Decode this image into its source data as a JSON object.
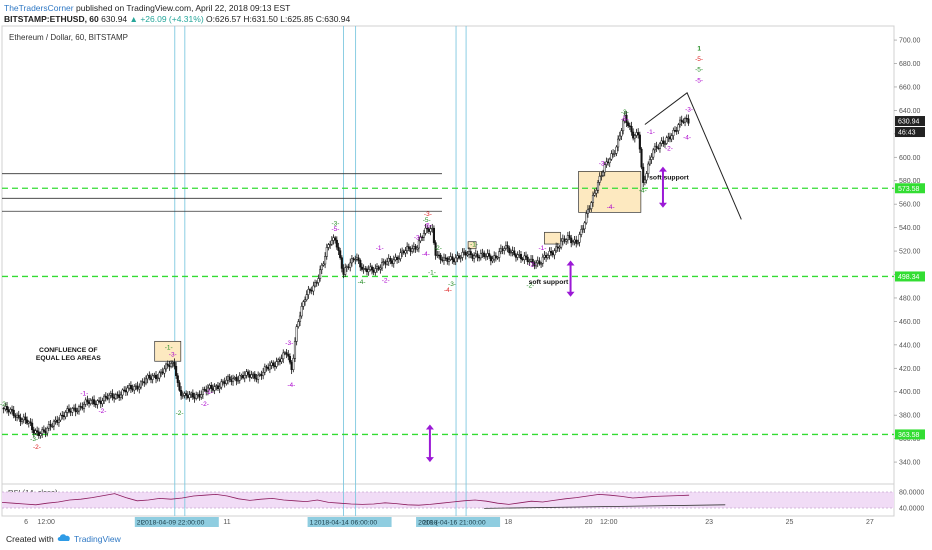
{
  "header": {
    "author": "TheTradersCorner",
    "published_text": " published on TradingView.com, April 22, 2018 09:13 EST",
    "symbol_line": "BITSTAMP:ETHUSD, 60",
    "last": "630.94",
    "change": "+26.09 (+4.31%)",
    "ohlc_o": "O:626.57",
    "ohlc_h": "H:631.50",
    "ohlc_l": "L:625.85",
    "ohlc_c": "C:630.94"
  },
  "footer": {
    "created_with": "Created with",
    "brand": "TradingView"
  },
  "colors": {
    "candle": "#111111",
    "level": "#33dd33",
    "cycle_line": "#7fc9e0",
    "fib_purple": "#aa00cc",
    "fib_green": "#228b22",
    "fib_red": "#dd2222",
    "box_fill": "#fde9c0",
    "rsi_line": "#8b1a5c",
    "rsi_band": "#f1dcf6",
    "arrow": "#9b19d6"
  },
  "chart_data": {
    "type": "candlestick",
    "title": "Ethereum / Dollar, 60, BITSTAMP",
    "price_axis": {
      "range": [
        323,
        712
      ],
      "ticks": [
        340,
        360,
        380,
        400,
        420,
        440,
        460,
        480,
        500,
        520,
        540,
        560,
        580,
        600,
        620,
        640,
        660,
        680,
        700
      ],
      "tick_labels": [
        "340.00",
        "360.00",
        "380.00",
        "400.00",
        "420.00",
        "440.00",
        "460.00",
        "480.00",
        "500.00",
        "520.00",
        "540.00",
        "560.00",
        "580.00",
        "600.00",
        "620.00",
        "640.00",
        "660.00",
        "680.00",
        "700.00"
      ]
    },
    "time_axis": {
      "range_days": [
        5.4,
        27.6
      ],
      "tick_labels": [
        {
          "day": 6,
          "label": "6"
        },
        {
          "day": 6.5,
          "label": "12:00"
        },
        {
          "day": 11,
          "label": "11"
        },
        {
          "day": 18,
          "label": "18"
        },
        {
          "day": 20,
          "label": "20"
        },
        {
          "day": 20.5,
          "label": "12:00"
        },
        {
          "day": 23,
          "label": "23"
        },
        {
          "day": 25,
          "label": "25"
        },
        {
          "day": 27,
          "label": "27"
        }
      ],
      "cursor_labels": [
        {
          "day": 9.9,
          "label": "2018-04-09 22:00:00"
        },
        {
          "day": 14.2,
          "label": "2018-04-14 06:00:00"
        },
        {
          "day": 16.9,
          "label": "2018-04-16 21:00:00"
        }
      ],
      "cursor_prefixes": [
        "2I",
        "1",
        "2018-("
      ]
    },
    "price_path": [
      [
        5.4,
        386
      ],
      [
        5.7,
        381
      ],
      [
        6.0,
        375
      ],
      [
        6.2,
        366
      ],
      [
        6.5,
        366
      ],
      [
        6.8,
        378
      ],
      [
        7.2,
        385
      ],
      [
        7.5,
        390
      ],
      [
        7.9,
        393
      ],
      [
        8.3,
        398
      ],
      [
        8.7,
        404
      ],
      [
        9.0,
        410
      ],
      [
        9.3,
        415
      ],
      [
        9.55,
        422
      ],
      [
        9.7,
        424
      ],
      [
        9.8,
        402
      ],
      [
        9.95,
        395
      ],
      [
        10.3,
        398
      ],
      [
        10.8,
        406
      ],
      [
        11.3,
        413
      ],
      [
        11.8,
        414
      ],
      [
        12.2,
        425
      ],
      [
        12.5,
        433
      ],
      [
        12.6,
        417
      ],
      [
        12.75,
        460
      ],
      [
        12.95,
        480
      ],
      [
        13.2,
        493
      ],
      [
        13.4,
        510
      ],
      [
        13.55,
        527
      ],
      [
        13.7,
        532
      ],
      [
        13.9,
        500
      ],
      [
        14.2,
        517
      ],
      [
        14.4,
        502
      ],
      [
        14.8,
        507
      ],
      [
        15.1,
        512
      ],
      [
        15.4,
        519
      ],
      [
        15.7,
        524
      ],
      [
        15.9,
        535
      ],
      [
        16.1,
        540
      ],
      [
        16.2,
        518
      ],
      [
        16.4,
        511
      ],
      [
        16.7,
        515
      ],
      [
        16.95,
        517
      ],
      [
        17.2,
        517
      ],
      [
        17.6,
        514
      ],
      [
        17.9,
        522
      ],
      [
        18.2,
        518
      ],
      [
        18.35,
        513
      ],
      [
        18.8,
        510
      ],
      [
        19.0,
        517
      ],
      [
        19.3,
        526
      ],
      [
        19.5,
        531
      ],
      [
        19.7,
        528
      ],
      [
        19.85,
        538
      ],
      [
        20.0,
        556
      ],
      [
        20.2,
        576
      ],
      [
        20.5,
        598
      ],
      [
        20.7,
        610
      ],
      [
        20.9,
        633
      ],
      [
        21.1,
        620
      ],
      [
        21.25,
        620
      ],
      [
        21.35,
        574
      ],
      [
        21.6,
        608
      ],
      [
        21.9,
        612
      ],
      [
        22.1,
        622
      ],
      [
        22.3,
        630
      ],
      [
        22.5,
        631
      ]
    ],
    "rsi": {
      "label": "RSI (14, close)",
      "range": [
        20,
        100
      ],
      "ticks": [
        {
          "v": 80,
          "label": "80.0000"
        },
        {
          "v": 40,
          "label": "40.0000"
        }
      ],
      "values": [
        54,
        52,
        50,
        48,
        52,
        55,
        60,
        62,
        66,
        71,
        76,
        66,
        58,
        60,
        64,
        62,
        65,
        70,
        72,
        74,
        70,
        63,
        59,
        62,
        64,
        60,
        58,
        56,
        60,
        54,
        52,
        50,
        49,
        50,
        53,
        51,
        48,
        47,
        49,
        52,
        55,
        58,
        60,
        57,
        52,
        49,
        53,
        57,
        55,
        59,
        63,
        66,
        70,
        74,
        72,
        69,
        65,
        67,
        69,
        70,
        71,
        72
      ]
    },
    "levels": [
      {
        "price": 573.58,
        "label": "573.58"
      },
      {
        "price": 498.34,
        "label": "498.34"
      },
      {
        "price": 363.58,
        "label": "363.58"
      }
    ],
    "resistance_lines": [
      586,
      565,
      554
    ],
    "last_price_label": "630.94",
    "secondary_label": "46:43",
    "cycle_lines": [
      9.7,
      9.95,
      13.9,
      14.2,
      16.7,
      16.95
    ],
    "boxes": [
      {
        "x0": 9.2,
        "x1": 9.85,
        "y0": 426,
        "y1": 443
      },
      {
        "x0": 17.0,
        "x1": 17.2,
        "y0": 522,
        "y1": 528
      },
      {
        "x0": 18.9,
        "x1": 19.3,
        "y0": 526,
        "y1": 536
      },
      {
        "x0": 19.75,
        "x1": 21.3,
        "y0": 553,
        "y1": 588
      }
    ],
    "projection": {
      "from": [
        21.4,
        628
      ],
      "peak": [
        22.45,
        655
      ],
      "to": [
        23.8,
        547
      ]
    },
    "fib_labels": [
      {
        "d": 5.45,
        "p": 388,
        "t": "-2-",
        "c": "green"
      },
      {
        "d": 6.2,
        "p": 358,
        "t": "-3-",
        "c": "green"
      },
      {
        "d": 6.27,
        "p": 351,
        "t": "-2-",
        "c": "red"
      },
      {
        "d": 7.45,
        "p": 397,
        "t": "-1-",
        "c": "purple"
      },
      {
        "d": 7.9,
        "p": 382,
        "t": "-2-",
        "c": "purple"
      },
      {
        "d": 9.55,
        "p": 436,
        "t": "-1-",
        "c": "green"
      },
      {
        "d": 9.65,
        "p": 430,
        "t": "-3-",
        "c": "purple"
      },
      {
        "d": 9.82,
        "p": 380,
        "t": "-2-",
        "c": "green"
      },
      {
        "d": 10.55,
        "p": 398,
        "t": "-1-",
        "c": "purple"
      },
      {
        "d": 10.45,
        "p": 388,
        "t": "-2-",
        "c": "purple"
      },
      {
        "d": 12.55,
        "p": 440,
        "t": "-3-",
        "c": "purple"
      },
      {
        "d": 12.6,
        "p": 404,
        "t": "-4-",
        "c": "purple"
      },
      {
        "d": 13.7,
        "p": 542,
        "t": "-3-",
        "c": "green"
      },
      {
        "d": 13.7,
        "p": 537,
        "t": "-5-",
        "c": "purple"
      },
      {
        "d": 14.35,
        "p": 492,
        "t": "-4-",
        "c": "green"
      },
      {
        "d": 14.8,
        "p": 521,
        "t": "-1-",
        "c": "purple"
      },
      {
        "d": 14.95,
        "p": 493,
        "t": "-2-",
        "c": "purple"
      },
      {
        "d": 15.75,
        "p": 530,
        "t": "-3-",
        "c": "purple"
      },
      {
        "d": 15.95,
        "p": 516,
        "t": "-4-",
        "c": "purple"
      },
      {
        "d": 16.0,
        "p": 550,
        "t": "-3-",
        "c": "red"
      },
      {
        "d": 15.97,
        "p": 545,
        "t": "-5-",
        "c": "green"
      },
      {
        "d": 16.0,
        "p": 540,
        "t": "-5-",
        "c": "purple"
      },
      {
        "d": 16.25,
        "p": 521,
        "t": "-2-",
        "c": "green"
      },
      {
        "d": 16.1,
        "p": 500,
        "t": "-1-",
        "c": "green"
      },
      {
        "d": 16.6,
        "p": 490,
        "t": "-3-",
        "c": "green"
      },
      {
        "d": 16.5,
        "p": 485,
        "t": "-4-",
        "c": "red"
      },
      {
        "d": 17.15,
        "p": 524,
        "t": "-1-",
        "c": "green"
      },
      {
        "d": 18.85,
        "p": 521,
        "t": "-1-",
        "c": "purple"
      },
      {
        "d": 18.6,
        "p": 507,
        "t": "-2-",
        "c": "purple"
      },
      {
        "d": 18.55,
        "p": 489,
        "t": "-2-",
        "c": "green"
      },
      {
        "d": 20.35,
        "p": 593,
        "t": "-3-",
        "c": "purple"
      },
      {
        "d": 20.55,
        "p": 556,
        "t": "-4-",
        "c": "purple"
      },
      {
        "d": 20.9,
        "p": 637,
        "t": "-3-",
        "c": "green"
      },
      {
        "d": 20.9,
        "p": 631,
        "t": "-5-",
        "c": "purple"
      },
      {
        "d": 21.55,
        "p": 620,
        "t": "-1-",
        "c": "purple"
      },
      {
        "d": 21.35,
        "p": 570,
        "t": "-4-",
        "c": "green"
      },
      {
        "d": 22.0,
        "p": 606,
        "t": "-2-",
        "c": "purple"
      },
      {
        "d": 22.5,
        "p": 639,
        "t": "-3-",
        "c": "purple"
      },
      {
        "d": 22.45,
        "p": 615,
        "t": "-4-",
        "c": "purple"
      },
      {
        "d": 22.75,
        "p": 691,
        "t": "1",
        "c": "green"
      },
      {
        "d": 22.75,
        "p": 682,
        "t": "-5-",
        "c": "red"
      },
      {
        "d": 22.75,
        "p": 673,
        "t": "-5-",
        "c": "green"
      },
      {
        "d": 22.75,
        "p": 664,
        "t": "-5-",
        "c": "purple"
      }
    ],
    "annotations": [
      {
        "d": 7.05,
        "p": 434,
        "t": "CONFLUENCE OF"
      },
      {
        "d": 7.05,
        "p": 427,
        "t": "EQUAL LEG AREAS"
      },
      {
        "d": 19.0,
        "p": 492,
        "t": "soft support"
      },
      {
        "d": 22.0,
        "p": 581,
        "t": "soft support"
      }
    ],
    "double_arrows": [
      {
        "d": 21.85,
        "p_top": 592,
        "p_bottom": 557
      },
      {
        "d": 19.55,
        "p_top": 512,
        "p_bottom": 481
      },
      {
        "d": 16.05,
        "p_top": 372,
        "p_bottom": 340
      }
    ],
    "rsi_trendline": {
      "from": [
        17.4,
        39
      ],
      "to": [
        23.4,
        48
      ]
    }
  }
}
